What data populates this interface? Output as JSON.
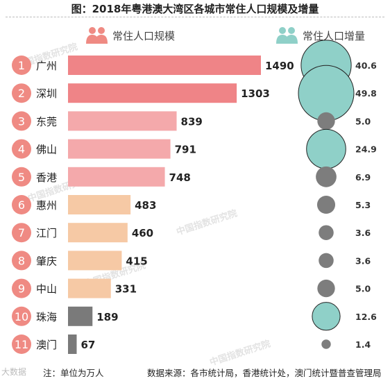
{
  "title": "图：2018年粤港澳大湾区各城市常住人口规模及增量",
  "header": {
    "left_label": "常住人口规模",
    "right_label": "常住人口增量"
  },
  "watermark": "中国指数研究院",
  "footer": {
    "logo": "大数据",
    "note": "注：单位为万人",
    "source": "数据来源：各市统计局，香港统计处，澳门统计暨普查管理局"
  },
  "colors": {
    "rank_circle": "#ef8a83",
    "bar_tier1": "#ef8487",
    "bar_tier2": "#f4a9ab",
    "bar_tier3": "#f6c9a5",
    "bar_tier4": "#7a7a7a",
    "bubble_large": "#8fd0c8",
    "bubble_small": "#7d7d7d",
    "header_left_icon": "#ef8a83",
    "header_right_icon": "#8fd0c8"
  },
  "chart_data": {
    "type": "bar",
    "orientation": "horizontal",
    "categories": [
      "广州",
      "深圳",
      "东莞",
      "佛山",
      "香港",
      "惠州",
      "江门",
      "肇庆",
      "中山",
      "珠海",
      "澳门"
    ],
    "ranks": [
      "1",
      "2",
      "3",
      "4",
      "5",
      "6",
      "7",
      "8",
      "9",
      "10",
      "11"
    ],
    "series": [
      {
        "name": "常住人口规模",
        "values": [
          1490,
          1303,
          839,
          791,
          748,
          483,
          460,
          415,
          331,
          189,
          67
        ],
        "tiers": [
          1,
          1,
          2,
          2,
          2,
          3,
          3,
          3,
          3,
          4,
          4
        ]
      },
      {
        "name": "常住人口增量",
        "values": [
          40.6,
          49.8,
          5.0,
          24.9,
          6.9,
          5.3,
          3.6,
          3.6,
          5.0,
          12.6,
          1.4
        ],
        "labels": [
          "40.6",
          "49.8",
          "5.0",
          "24.9",
          "6.9",
          "5.3",
          "3.6",
          "3.6",
          "5.0",
          "12.6",
          "1.4"
        ],
        "highlight": [
          true,
          true,
          false,
          true,
          false,
          false,
          false,
          false,
          false,
          true,
          false
        ]
      }
    ],
    "unit": "万人"
  }
}
